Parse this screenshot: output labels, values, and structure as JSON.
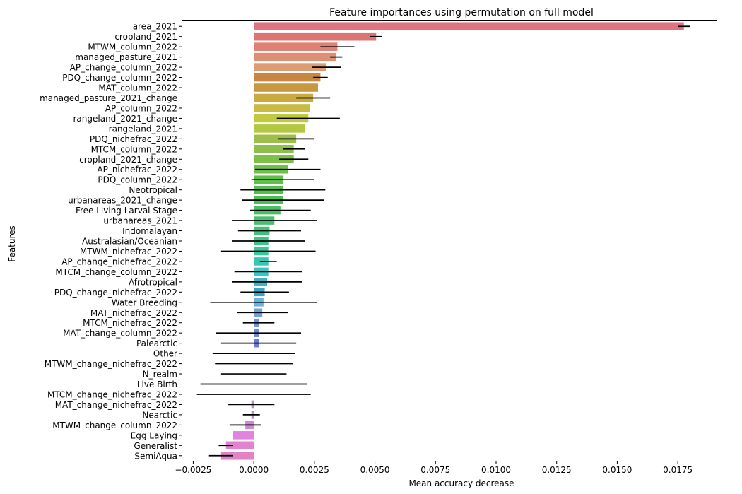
{
  "chart_data": {
    "type": "bar",
    "orientation": "horizontal",
    "title": "Feature importances using permutation on full model",
    "xlabel": "Mean accuracy decrease",
    "ylabel": "Features",
    "xlim": [
      -0.00295,
      0.0191
    ],
    "xticks": [
      -0.0025,
      0.0,
      0.0025,
      0.005,
      0.0075,
      0.01,
      0.0125,
      0.015,
      0.0175
    ],
    "xtick_labels": [
      "−0.0025",
      "0.0000",
      "0.0025",
      "0.0050",
      "0.0075",
      "0.0100",
      "0.0125",
      "0.0150",
      "0.0175"
    ],
    "grid": false,
    "categories": [
      "area_2021",
      "cropland_2021",
      "MTWM_column_2022",
      "managed_pasture_2021",
      "AP_change_column_2022",
      "PDQ_change_column_2022",
      "MAT_column_2022",
      "managed_pasture_2021_change",
      "AP_column_2022",
      "rangeland_2021_change",
      "rangeland_2021",
      "PDQ_nichefrac_2022",
      "MTCM_column_2022",
      "cropland_2021_change",
      "AP_nichefrac_2022",
      "PDQ_column_2022",
      "Neotropical",
      "urbanareas_2021_change",
      "Free Living Larval Stage",
      "urbanareas_2021",
      "Indomalayan",
      "Australasian/Oceanian",
      "MTWM_nichefrac_2022",
      "AP_change_nichefrac_2022",
      "MTCM_change_column_2022",
      "Afrotropical",
      "PDQ_change_nichefrac_2022",
      "Water Breeding",
      "MAT_nichefrac_2022",
      "MTCM_nichefrac_2022",
      "MAT_change_column_2022",
      "Palearctic",
      "Other",
      "MTWM_change_nichefrac_2022",
      "N_realm",
      "Live Birth ",
      "MTCM_change_nichefrac_2022",
      "MAT_change_nichefrac_2022",
      "Nearctic",
      "MTWM_change_column_2022",
      "Egg Laying",
      "Generalist",
      "SemiAqua"
    ],
    "values": [
      0.01775,
      0.00505,
      0.00345,
      0.0034,
      0.003,
      0.00275,
      0.00265,
      0.00245,
      0.0023,
      0.00225,
      0.0021,
      0.00175,
      0.00165,
      0.00165,
      0.0014,
      0.0012,
      0.0012,
      0.0012,
      0.0011,
      0.00085,
      0.00065,
      0.0006,
      0.0006,
      0.0006,
      0.0006,
      0.00055,
      0.00045,
      0.0004,
      0.00035,
      0.0002,
      0.0002,
      0.0002,
      0.0,
      0.0,
      0.0,
      0.0,
      0.0,
      -0.0001,
      -0.0001,
      -0.00035,
      -0.00085,
      -0.00115,
      -0.00135
    ],
    "errors": [
      0.00025,
      0.00025,
      0.0007,
      0.00025,
      0.0006,
      0.0003,
      0.0,
      0.0007,
      0.0,
      0.0013,
      0.0,
      0.00075,
      0.00045,
      0.0006,
      0.00135,
      0.0013,
      0.00175,
      0.0017,
      0.00125,
      0.00175,
      0.0013,
      0.0015,
      0.00195,
      0.00035,
      0.0014,
      0.00145,
      0.001,
      0.0022,
      0.00105,
      0.00065,
      0.00175,
      0.00155,
      0.0017,
      0.0016,
      0.00135,
      0.0022,
      0.00235,
      0.00095,
      0.00035,
      0.00065,
      0.0,
      0.0003,
      0.0005
    ]
  }
}
